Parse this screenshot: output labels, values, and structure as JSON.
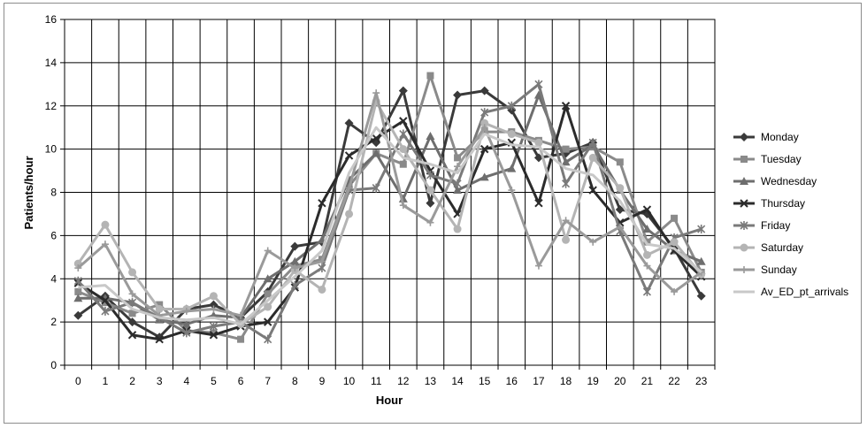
{
  "chart_data": {
    "type": "line",
    "title": "",
    "xlabel": "Hour",
    "ylabel": "Patients/hour",
    "x": [
      0,
      1,
      2,
      3,
      4,
      5,
      6,
      7,
      8,
      9,
      10,
      11,
      12,
      13,
      14,
      15,
      16,
      17,
      18,
      19,
      20,
      21,
      22,
      23
    ],
    "x_tick_labels": [
      "0",
      "1",
      "2",
      "3",
      "4",
      "5",
      "6",
      "7",
      "8",
      "9",
      "10",
      "11",
      "12",
      "13",
      "14",
      "15",
      "16",
      "17",
      "18",
      "19",
      "20",
      "21",
      "22",
      "23"
    ],
    "ylim": [
      0,
      16
    ],
    "y_ticks": [
      0,
      2,
      4,
      6,
      8,
      10,
      12,
      14,
      16
    ],
    "y_tick_labels": [
      "0",
      "2",
      "4",
      "6",
      "8",
      "10",
      "12",
      "14",
      "16"
    ],
    "grid": true,
    "legend_position": "right",
    "series": [
      {
        "name": "Monday",
        "color": "#3a3a3a",
        "marker": "diamond",
        "values": [
          2.3,
          3.2,
          2.0,
          1.3,
          2.6,
          2.8,
          2.2,
          3.4,
          5.5,
          5.7,
          11.2,
          10.3,
          12.7,
          7.5,
          12.5,
          12.7,
          11.8,
          9.6,
          9.8,
          10.3,
          7.2,
          7.0,
          5.4,
          3.2
        ]
      },
      {
        "name": "Tuesday",
        "color": "#8a8a8a",
        "marker": "square",
        "values": [
          3.4,
          2.9,
          2.4,
          2.8,
          1.6,
          1.5,
          1.2,
          3.3,
          4.6,
          4.9,
          8.3,
          9.8,
          9.3,
          13.4,
          9.6,
          10.8,
          10.8,
          10.4,
          10.0,
          10.1,
          9.4,
          5.7,
          6.8,
          4.3
        ]
      },
      {
        "name": "Wednesday",
        "color": "#6e6e6e",
        "marker": "triangle",
        "values": [
          3.1,
          3.1,
          2.9,
          2.1,
          1.9,
          2.3,
          2.2,
          4.0,
          4.8,
          5.8,
          8.6,
          9.8,
          7.7,
          10.6,
          8.1,
          8.7,
          9.1,
          12.5,
          9.4,
          10.2,
          8.1,
          6.3,
          5.3,
          4.8
        ]
      },
      {
        "name": "Thursday",
        "color": "#2b2b2b",
        "marker": "x",
        "values": [
          3.8,
          3.0,
          1.4,
          1.2,
          1.6,
          1.4,
          1.8,
          2.0,
          3.6,
          7.5,
          9.7,
          10.5,
          11.3,
          9.0,
          7.0,
          10.0,
          10.3,
          7.5,
          12.0,
          8.1,
          6.6,
          7.2,
          5.3,
          4.1
        ]
      },
      {
        "name": "Friday",
        "color": "#7a7a7a",
        "marker": "star",
        "values": [
          3.9,
          2.5,
          2.9,
          2.2,
          1.5,
          1.8,
          2.0,
          1.2,
          3.7,
          4.5,
          8.1,
          8.2,
          10.7,
          8.8,
          8.4,
          11.7,
          12.0,
          13.0,
          8.4,
          10.3,
          6.2,
          3.4,
          5.9,
          6.3
        ]
      },
      {
        "name": "Saturday",
        "color": "#b4b4b4",
        "marker": "circle",
        "values": [
          4.7,
          6.5,
          4.3,
          2.6,
          2.6,
          3.2,
          1.9,
          2.7,
          4.4,
          3.5,
          7.0,
          12.2,
          10.0,
          8.1,
          6.3,
          11.2,
          10.7,
          10.3,
          5.8,
          9.6,
          8.2,
          5.1,
          5.7,
          4.2
        ]
      },
      {
        "name": "Sunday",
        "color": "#9a9a9a",
        "marker": "plus",
        "values": [
          4.5,
          5.6,
          3.3,
          2.3,
          2.5,
          2.6,
          2.3,
          5.3,
          4.5,
          4.8,
          8.2,
          12.6,
          7.4,
          6.6,
          9.2,
          11.0,
          8.1,
          4.6,
          6.7,
          5.7,
          6.4,
          4.6,
          3.4,
          4.3
        ]
      },
      {
        "name": "Av_ED_pt_arrivals",
        "color": "#c8c8c8",
        "marker": "none",
        "values": [
          3.6,
          3.7,
          2.6,
          2.2,
          2.1,
          2.2,
          1.9,
          3.0,
          4.1,
          5.3,
          8.9,
          11.0,
          9.6,
          9.3,
          8.9,
          10.7,
          10.2,
          10.1,
          9.1,
          8.8,
          7.6,
          5.6,
          5.4,
          4.3
        ]
      }
    ]
  }
}
